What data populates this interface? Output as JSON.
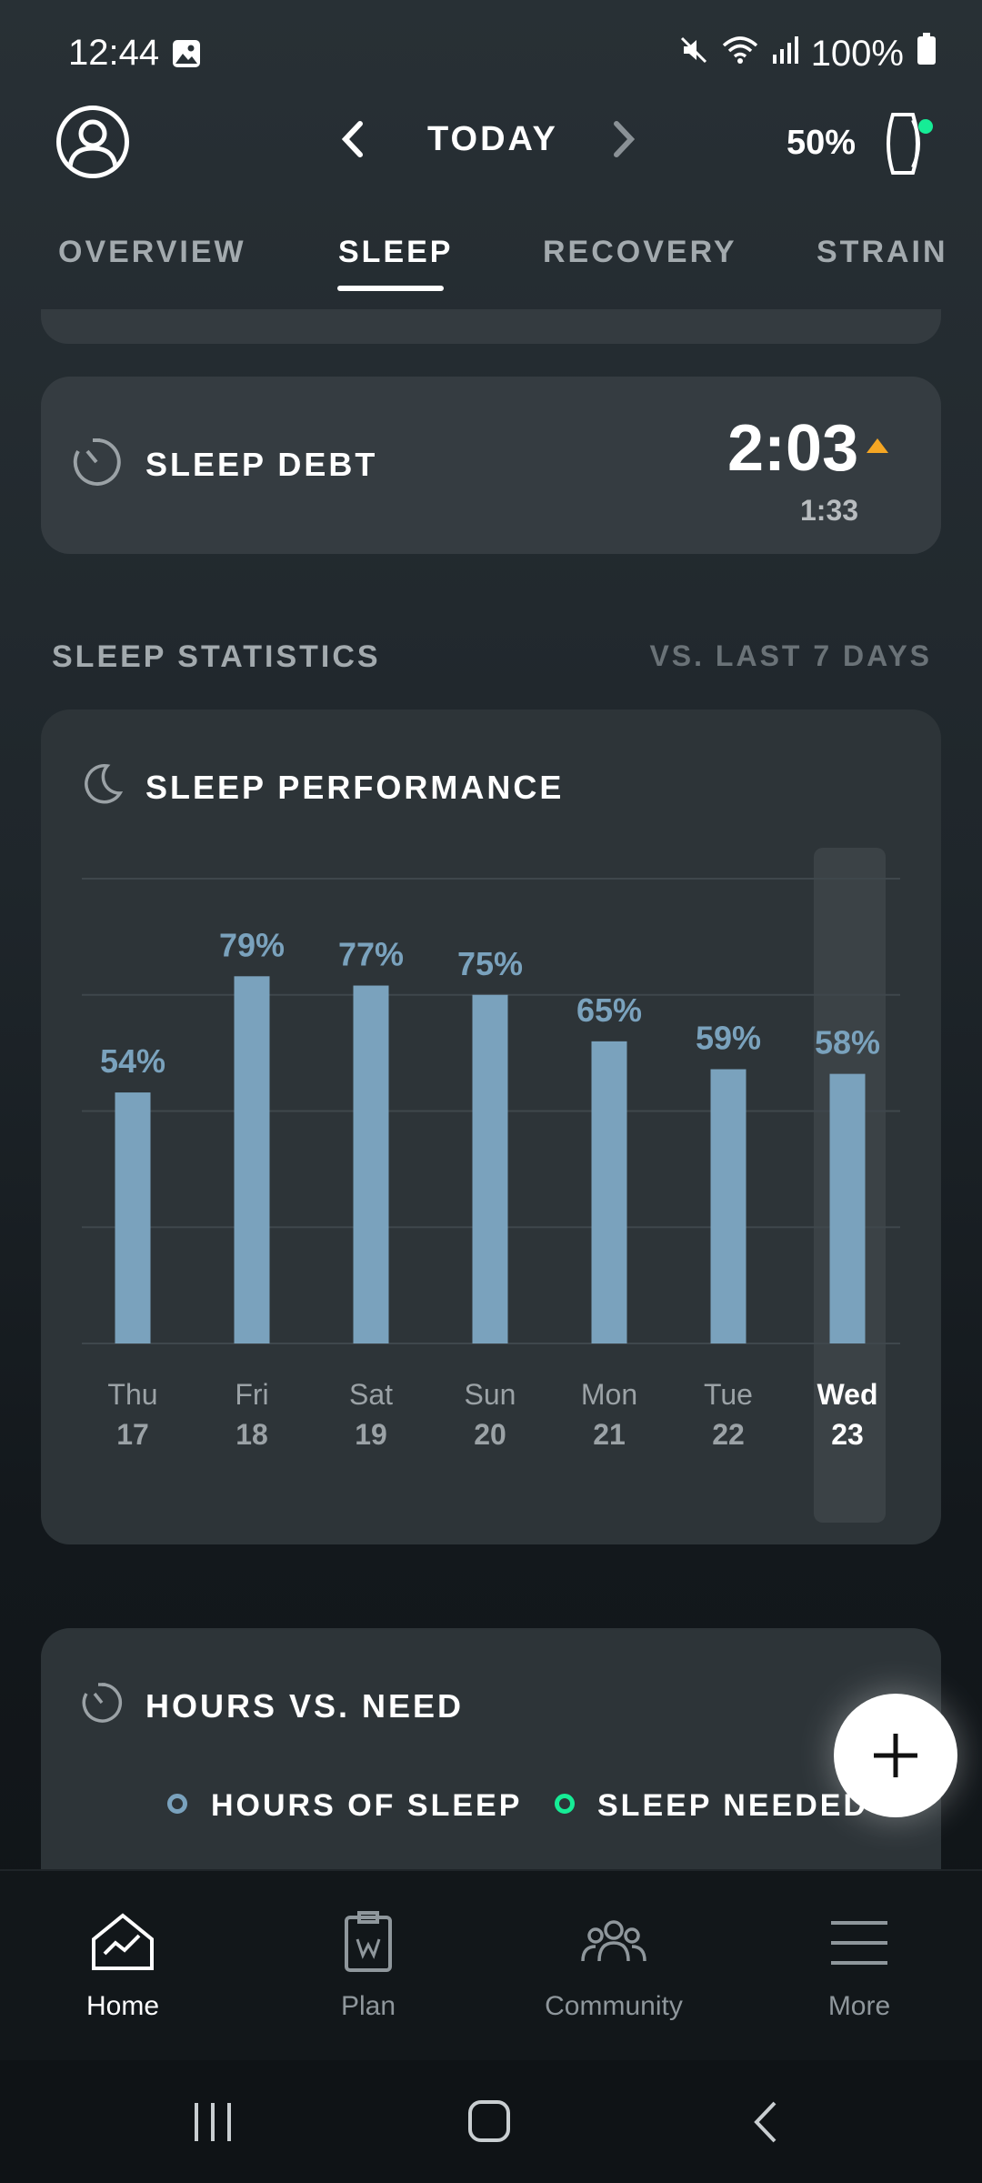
{
  "status_bar": {
    "time": "12:44",
    "battery": "100%",
    "icons": [
      "image-icon",
      "mute-icon",
      "wifi-icon",
      "signal-icon",
      "battery-icon"
    ]
  },
  "header": {
    "title": "TODAY",
    "strap_battery": "50%",
    "strap_status_color": "#16ec96"
  },
  "tabs": [
    {
      "label": "OVERVIEW",
      "active": false
    },
    {
      "label": "SLEEP",
      "active": true
    },
    {
      "label": "RECOVERY",
      "active": false
    },
    {
      "label": "STRAIN",
      "active": false
    }
  ],
  "sleep_debt": {
    "label": "SLEEP DEBT",
    "value": "2:03",
    "previous": "1:33",
    "trend_color": "#f5a623"
  },
  "statistics": {
    "title": "SLEEP STATISTICS",
    "comparison": "VS. LAST 7 DAYS"
  },
  "sleep_performance": {
    "title": "SLEEP PERFORMANCE"
  },
  "chart_data": {
    "type": "bar",
    "categories": [
      "Thu 17",
      "Fri 18",
      "Sat 19",
      "Sun 20",
      "Mon 21",
      "Tue 22",
      "Wed 23"
    ],
    "days": [
      "Thu",
      "Fri",
      "Sat",
      "Sun",
      "Mon",
      "Tue",
      "Wed"
    ],
    "dates": [
      "17",
      "18",
      "19",
      "20",
      "21",
      "22",
      "23"
    ],
    "values": [
      54,
      79,
      77,
      75,
      65,
      59,
      58
    ],
    "labels": [
      "54%",
      "79%",
      "77%",
      "75%",
      "65%",
      "59%",
      "58%"
    ],
    "ylim": [
      0,
      100
    ],
    "grid": true,
    "highlight_index": 6,
    "bar_color": "#7aa2bd"
  },
  "hours_vs_need": {
    "title": "HOURS VS. NEED",
    "legend": [
      {
        "label": "HOURS OF SLEEP",
        "color": "#7aa2bd"
      },
      {
        "label": "SLEEP NEEDED",
        "color": "#16ec96"
      }
    ]
  },
  "bottom_nav": [
    {
      "label": "Home",
      "icon": "home-chart-icon",
      "active": true
    },
    {
      "label": "Plan",
      "icon": "clipboard-icon",
      "active": false
    },
    {
      "label": "Community",
      "icon": "people-icon",
      "active": false
    },
    {
      "label": "More",
      "icon": "menu-icon",
      "active": false
    }
  ]
}
